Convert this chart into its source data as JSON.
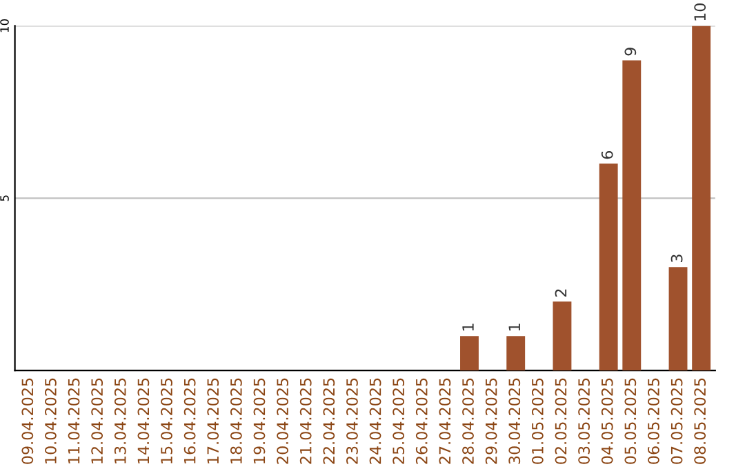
{
  "chart_data": {
    "type": "bar",
    "categories": [
      "09.04.2025",
      "10.04.2025",
      "11.04.2025",
      "12.04.2025",
      "13.04.2025",
      "14.04.2025",
      "15.04.2025",
      "16.04.2025",
      "17.04.2025",
      "18.04.2025",
      "19.04.2025",
      "20.04.2025",
      "21.04.2025",
      "22.04.2025",
      "23.04.2025",
      "24.04.2025",
      "25.04.2025",
      "26.04.2025",
      "27.04.2025",
      "28.04.2025",
      "29.04.2025",
      "30.04.2025",
      "01.05.2025",
      "02.05.2025",
      "03.05.2025",
      "04.05.2025",
      "05.05.2025",
      "06.05.2025",
      "07.05.2025",
      "08.05.2025"
    ],
    "values": [
      0,
      0,
      0,
      0,
      0,
      0,
      0,
      0,
      0,
      0,
      0,
      0,
      0,
      0,
      0,
      0,
      0,
      0,
      0,
      1,
      0,
      1,
      0,
      2,
      0,
      6,
      9,
      0,
      3,
      10
    ],
    "value_labels": [
      null,
      null,
      null,
      null,
      null,
      null,
      null,
      null,
      null,
      null,
      null,
      null,
      null,
      null,
      null,
      null,
      null,
      null,
      null,
      "1",
      null,
      "1",
      null,
      "2",
      null,
      "6",
      "9",
      null,
      "3",
      "10"
    ],
    "color": "#a0522d",
    "ylim": [
      0,
      10
    ],
    "yticks": [
      5,
      10
    ],
    "grid": "y",
    "legend": false
  }
}
